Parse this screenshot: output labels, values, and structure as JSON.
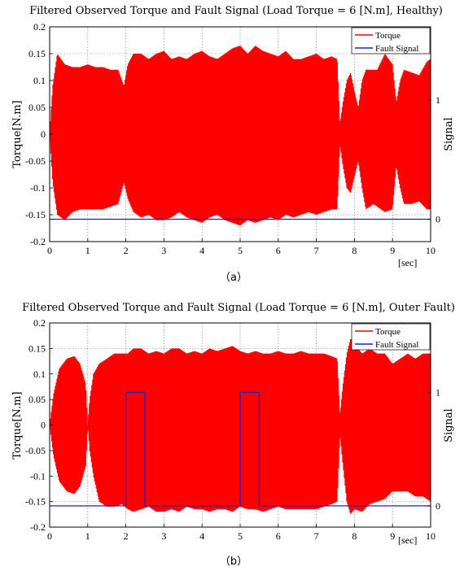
{
  "chart_data": [
    {
      "type": "line",
      "title": "Filtered Observed Torque and Fault Signal (Load Torque = 6 [N.m], Healthy)",
      "xlabel": "[sec]",
      "ylabel": "Torque[N.m]",
      "ylabel_right": "Signal",
      "caption": "（a）",
      "xlim": [
        0,
        10
      ],
      "ylim": [
        -0.2,
        0.2
      ],
      "y2lim": [
        -0.1875,
        1.6125
      ],
      "xticks": [
        "0",
        "1",
        "2",
        "3",
        "4",
        "5",
        "6",
        "7",
        "8",
        "9",
        "10"
      ],
      "yticks": [
        "0.2",
        "0.15",
        "0.1",
        "0.05",
        "0",
        "-0.05",
        "-0.1",
        "-0.15",
        "-0.2"
      ],
      "y2ticks": [
        "1",
        "0"
      ],
      "grid": true,
      "legend_position": "top-right",
      "series": [
        {
          "name": "Torque",
          "color": "#ff0000",
          "style": "oscillating envelope",
          "envelope_x": [
            0,
            0.08,
            0.2,
            0.4,
            0.6,
            0.8,
            1.0,
            1.2,
            1.4,
            1.6,
            1.8,
            1.95,
            2.05,
            2.2,
            2.4,
            2.6,
            2.8,
            3.0,
            3.2,
            3.4,
            3.6,
            3.8,
            4.0,
            4.2,
            4.4,
            4.6,
            4.8,
            5.0,
            5.2,
            5.4,
            5.6,
            5.8,
            6.0,
            6.2,
            6.4,
            6.6,
            6.8,
            7.0,
            7.2,
            7.4,
            7.55,
            7.62,
            7.7,
            7.8,
            7.9,
            8.0,
            8.1,
            8.2,
            8.3,
            8.4,
            8.5,
            8.6,
            8.8,
            9.0,
            9.1,
            9.2,
            9.3,
            9.5,
            9.7,
            9.9,
            10.0
          ],
          "envelope_upper": [
            0.0,
            0.09,
            0.15,
            0.13,
            0.125,
            0.125,
            0.13,
            0.125,
            0.125,
            0.12,
            0.12,
            0.09,
            0.13,
            0.15,
            0.15,
            0.14,
            0.15,
            0.155,
            0.14,
            0.145,
            0.14,
            0.15,
            0.155,
            0.145,
            0.14,
            0.15,
            0.16,
            0.165,
            0.15,
            0.165,
            0.155,
            0.15,
            0.145,
            0.155,
            0.14,
            0.14,
            0.145,
            0.15,
            0.14,
            0.145,
            0.14,
            0.02,
            0.06,
            0.1,
            0.115,
            0.08,
            0.05,
            0.1,
            0.12,
            0.12,
            0.12,
            0.12,
            0.15,
            0.13,
            0.06,
            0.1,
            0.12,
            0.115,
            0.11,
            0.135,
            0.14
          ],
          "envelope_lower": [
            0.0,
            -0.09,
            -0.15,
            -0.16,
            -0.145,
            -0.14,
            -0.14,
            -0.14,
            -0.14,
            -0.135,
            -0.13,
            -0.09,
            -0.12,
            -0.145,
            -0.155,
            -0.15,
            -0.16,
            -0.16,
            -0.155,
            -0.145,
            -0.155,
            -0.16,
            -0.165,
            -0.155,
            -0.15,
            -0.16,
            -0.165,
            -0.17,
            -0.16,
            -0.165,
            -0.16,
            -0.155,
            -0.16,
            -0.15,
            -0.155,
            -0.15,
            -0.145,
            -0.15,
            -0.145,
            -0.14,
            -0.14,
            -0.02,
            -0.06,
            -0.1,
            -0.11,
            -0.08,
            -0.05,
            -0.1,
            -0.14,
            -0.135,
            -0.13,
            -0.135,
            -0.145,
            -0.14,
            -0.06,
            -0.1,
            -0.13,
            -0.13,
            -0.125,
            -0.14,
            -0.14
          ]
        },
        {
          "name": "Fault Signal",
          "color": "#2020c0",
          "axis": "right",
          "x": [
            0,
            10
          ],
          "y": [
            0,
            0
          ]
        }
      ]
    },
    {
      "type": "line",
      "title": "Filtered Observed Torque and Fault Signal (Load Torque = 6 [N.m], Outer Fault)",
      "xlabel": "[sec]",
      "ylabel": "Torque[N.m]",
      "ylabel_right": "Signal",
      "caption": "（b）",
      "xlim": [
        0,
        10
      ],
      "ylim": [
        -0.2,
        0.2
      ],
      "y2lim": [
        -0.1875,
        1.6125
      ],
      "xticks": [
        "0",
        "1",
        "2",
        "3",
        "4",
        "5",
        "6",
        "7",
        "8",
        "9",
        "10"
      ],
      "yticks": [
        "0.2",
        "0.15",
        "0.1",
        "0.05",
        "0",
        "-0.05",
        "-0.1",
        "-0.15",
        "-0.2"
      ],
      "y2ticks": [
        "1",
        "0"
      ],
      "grid": true,
      "legend_position": "top-right",
      "series": [
        {
          "name": "Torque",
          "color": "#ff0000",
          "style": "oscillating envelope",
          "envelope_x": [
            0,
            0.1,
            0.25,
            0.45,
            0.65,
            0.8,
            0.95,
            1.0,
            1.05,
            1.15,
            1.3,
            1.5,
            1.7,
            1.9,
            2.05,
            2.2,
            2.4,
            2.6,
            2.8,
            3.0,
            3.2,
            3.4,
            3.6,
            3.8,
            4.0,
            4.2,
            4.4,
            4.6,
            4.8,
            5.0,
            5.2,
            5.4,
            5.6,
            5.8,
            6.0,
            6.2,
            6.4,
            6.6,
            6.8,
            7.0,
            7.2,
            7.4,
            7.55,
            7.62,
            7.7,
            7.8,
            7.9,
            8.0,
            8.2,
            8.4,
            8.6,
            8.8,
            9.0,
            9.2,
            9.4,
            9.6,
            9.8,
            10.0
          ],
          "envelope_upper": [
            0.0,
            0.06,
            0.11,
            0.13,
            0.135,
            0.12,
            0.08,
            0.0,
            0.05,
            0.1,
            0.12,
            0.13,
            0.14,
            0.14,
            0.14,
            0.15,
            0.15,
            0.14,
            0.145,
            0.14,
            0.15,
            0.15,
            0.14,
            0.145,
            0.14,
            0.15,
            0.145,
            0.15,
            0.155,
            0.145,
            0.14,
            0.145,
            0.14,
            0.14,
            0.145,
            0.14,
            0.14,
            0.145,
            0.14,
            0.14,
            0.14,
            0.135,
            0.13,
            0.02,
            0.08,
            0.14,
            0.17,
            0.16,
            0.14,
            0.15,
            0.14,
            0.14,
            0.12,
            0.13,
            0.14,
            0.13,
            0.14,
            0.14
          ],
          "envelope_lower": [
            0.0,
            -0.06,
            -0.11,
            -0.13,
            -0.135,
            -0.12,
            -0.08,
            0.0,
            -0.05,
            -0.1,
            -0.15,
            -0.16,
            -0.16,
            -0.155,
            -0.165,
            -0.17,
            -0.165,
            -0.16,
            -0.17,
            -0.17,
            -0.165,
            -0.17,
            -0.16,
            -0.165,
            -0.165,
            -0.17,
            -0.165,
            -0.165,
            -0.17,
            -0.16,
            -0.165,
            -0.165,
            -0.17,
            -0.165,
            -0.16,
            -0.165,
            -0.165,
            -0.165,
            -0.165,
            -0.165,
            -0.16,
            -0.155,
            -0.15,
            -0.02,
            -0.08,
            -0.15,
            -0.175,
            -0.165,
            -0.17,
            -0.155,
            -0.15,
            -0.145,
            -0.13,
            -0.13,
            -0.13,
            -0.14,
            -0.14,
            -0.15
          ]
        },
        {
          "name": "Fault Signal",
          "color": "#2020c0",
          "axis": "right",
          "x": [
            0,
            2.0,
            2.0,
            2.5,
            2.5,
            5.0,
            5.0,
            5.5,
            5.5,
            10
          ],
          "y": [
            0,
            0,
            1,
            1,
            0,
            0,
            1,
            1,
            0,
            0
          ]
        }
      ]
    }
  ]
}
